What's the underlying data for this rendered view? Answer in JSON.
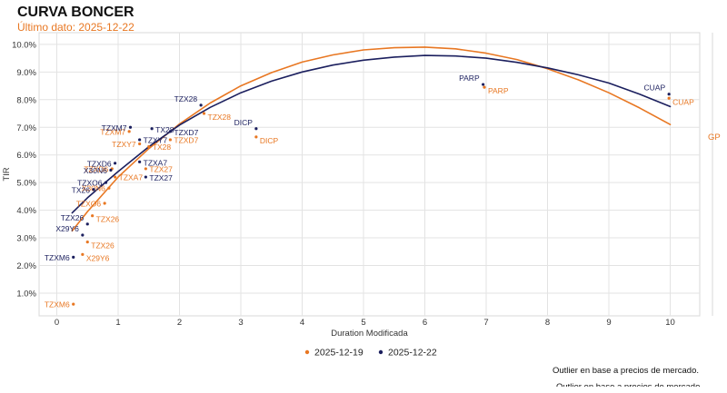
{
  "header": {
    "title": "CURVA BONCER",
    "subtitle": "Último dato: 2025-12-22"
  },
  "footnote": "Outlier en base a precios de mercado.",
  "footnote_ghost": "Outlier en base a precios de mercado.",
  "colors": {
    "orange": "#e87722",
    "navy": "#1b1f5e",
    "grid": "#e3e3e3",
    "frame": "#d8d8d8"
  },
  "chart_data": {
    "type": "scatter",
    "xlabel": "Duration Modificada",
    "ylabel": "TIR",
    "xlim": [
      -0.3,
      10.5
    ],
    "ylim": [
      0.3,
      10.4
    ],
    "x_ticks": [
      0,
      1,
      2,
      3,
      4,
      5,
      6,
      7,
      8,
      9,
      10
    ],
    "y_ticks": [
      1,
      2,
      3,
      4,
      5,
      6,
      7,
      8,
      9,
      10
    ],
    "y_tick_labels": [
      "1.0%",
      "2.0%",
      "3.0%",
      "4.0%",
      "5.0%",
      "6.0%",
      "7.0%",
      "8.0%",
      "9.0%",
      "10.0%"
    ],
    "grid": true,
    "legend": {
      "position": "bottom",
      "entries": [
        {
          "label": "2025-12-19",
          "color": "#e87722"
        },
        {
          "label": "2025-12-22",
          "color": "#1b1f5e"
        }
      ]
    },
    "edge_label": "GP",
    "series": [
      {
        "name": "2025-12-19",
        "color": "#e87722",
        "points": [
          {
            "label": "TZXM6",
            "x": 0.27,
            "y": 0.6
          },
          {
            "label": "X29Y6",
            "x": 0.42,
            "y": 2.4
          },
          {
            "label": "TZX26",
            "x": 0.5,
            "y": 2.85
          },
          {
            "label": "TZX26",
            "x": 0.58,
            "y": 3.8
          },
          {
            "label": "TZXO6",
            "x": 0.78,
            "y": 4.25
          },
          {
            "label": "X30N6",
            "x": 0.85,
            "y": 4.8
          },
          {
            "label": "TZXA7",
            "x": 0.95,
            "y": 5.2
          },
          {
            "label": "TZXD6",
            "x": 0.9,
            "y": 5.5
          },
          {
            "label": "TZX27",
            "x": 1.45,
            "y": 5.5
          },
          {
            "label": "TX28",
            "x": 1.5,
            "y": 6.3
          },
          {
            "label": "TZXY7",
            "x": 1.35,
            "y": 6.4
          },
          {
            "label": "TZXM7",
            "x": 1.18,
            "y": 6.85
          },
          {
            "label": "TZXD7",
            "x": 1.85,
            "y": 6.55
          },
          {
            "label": "TZX28",
            "x": 2.4,
            "y": 7.5
          },
          {
            "label": "DICP",
            "x": 3.25,
            "y": 6.65
          },
          {
            "label": "PARP",
            "x": 6.97,
            "y": 8.45
          },
          {
            "label": "CUAP",
            "x": 9.98,
            "y": 8.05
          }
        ],
        "fit": [
          [
            0.25,
            3.25
          ],
          [
            0.5,
            3.95
          ],
          [
            1.0,
            5.2
          ],
          [
            1.5,
            6.23
          ],
          [
            2.0,
            7.12
          ],
          [
            2.5,
            7.88
          ],
          [
            3.0,
            8.5
          ],
          [
            3.5,
            8.98
          ],
          [
            4.0,
            9.36
          ],
          [
            4.5,
            9.62
          ],
          [
            5.0,
            9.8
          ],
          [
            5.5,
            9.88
          ],
          [
            6.0,
            9.9
          ],
          [
            6.5,
            9.84
          ],
          [
            7.0,
            9.68
          ],
          [
            7.5,
            9.45
          ],
          [
            8.0,
            9.12
          ],
          [
            8.5,
            8.72
          ],
          [
            9.0,
            8.25
          ],
          [
            9.5,
            7.7
          ],
          [
            10.0,
            7.1
          ]
        ]
      },
      {
        "name": "2025-12-22",
        "color": "#1b1f5e",
        "points": [
          {
            "label": "TZXM6",
            "x": 0.27,
            "y": 2.3
          },
          {
            "label": "X29Y6",
            "x": 0.42,
            "y": 3.1
          },
          {
            "label": "TZX26",
            "x": 0.5,
            "y": 3.5
          },
          {
            "label": "TX26",
            "x": 0.6,
            "y": 4.75
          },
          {
            "label": "TZXO6",
            "x": 0.8,
            "y": 5.0
          },
          {
            "label": "X30N6",
            "x": 0.88,
            "y": 5.45
          },
          {
            "label": "TZXD6",
            "x": 0.95,
            "y": 5.7
          },
          {
            "label": "TZX27",
            "x": 1.45,
            "y": 5.2
          },
          {
            "label": "TZXA7",
            "x": 1.35,
            "y": 5.75
          },
          {
            "label": "TZXY7",
            "x": 1.35,
            "y": 6.55
          },
          {
            "label": "TZXM7",
            "x": 1.2,
            "y": 7.0
          },
          {
            "label": "TX28",
            "x": 1.55,
            "y": 6.95
          },
          {
            "label": "TZXD7",
            "x": 1.85,
            "y": 6.85
          },
          {
            "label": "TZX28",
            "x": 2.35,
            "y": 7.8
          },
          {
            "label": "DICP",
            "x": 3.25,
            "y": 6.95
          },
          {
            "label": "PARP",
            "x": 6.95,
            "y": 8.55
          },
          {
            "label": "CUAP",
            "x": 9.98,
            "y": 8.2
          }
        ],
        "fit": [
          [
            0.25,
            3.9
          ],
          [
            0.5,
            4.45
          ],
          [
            1.0,
            5.4
          ],
          [
            1.5,
            6.3
          ],
          [
            2.0,
            7.08
          ],
          [
            2.5,
            7.72
          ],
          [
            3.0,
            8.25
          ],
          [
            3.5,
            8.67
          ],
          [
            4.0,
            9.0
          ],
          [
            4.5,
            9.25
          ],
          [
            5.0,
            9.43
          ],
          [
            5.5,
            9.54
          ],
          [
            6.0,
            9.6
          ],
          [
            6.5,
            9.58
          ],
          [
            7.0,
            9.5
          ],
          [
            7.5,
            9.35
          ],
          [
            8.0,
            9.15
          ],
          [
            8.5,
            8.9
          ],
          [
            9.0,
            8.6
          ],
          [
            9.5,
            8.2
          ],
          [
            10.0,
            7.75
          ]
        ]
      }
    ]
  }
}
